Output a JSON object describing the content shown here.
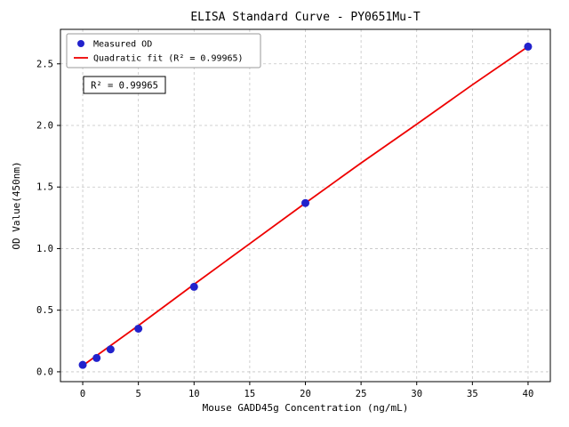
{
  "chart_data": {
    "type": "scatter",
    "title": "ELISA Standard Curve - PY0651Mu-T",
    "xlabel": "Mouse GADD45g Concentration (ng/mL)",
    "ylabel": "OD Value(450nm)",
    "xlim": [
      -2,
      42
    ],
    "ylim": [
      -0.08,
      2.78
    ],
    "xticks": [
      0,
      5,
      10,
      15,
      20,
      25,
      30,
      35,
      40
    ],
    "yticks": [
      0,
      0.5,
      1,
      1.5,
      2,
      2.5
    ],
    "xtick_labels": [
      "0",
      "5",
      "10",
      "15",
      "20",
      "25",
      "30",
      "35",
      "40"
    ],
    "ytick_labels": [
      "0.0",
      "0.5",
      "1.0",
      "1.5",
      "2.0",
      "2.5"
    ],
    "grid": true,
    "legend_position": "upper left",
    "annotation": "R² = 0.99965",
    "colors": {
      "scatter": "#2222cc",
      "fit": "#ee0000",
      "grid": "#c4c4c4",
      "axis": "#000000",
      "legend_border": "#999999"
    },
    "series": [
      {
        "name": "Measured OD",
        "type": "scatter",
        "color_key": "scatter",
        "x": [
          0,
          1.25,
          2.5,
          5,
          10,
          20,
          40
        ],
        "y": [
          0.056,
          0.112,
          0.182,
          0.35,
          0.69,
          1.37,
          2.64
        ]
      },
      {
        "name": "Quadratic fit (R² = 0.99965)",
        "type": "line",
        "color_key": "fit",
        "x": [
          0,
          5,
          10,
          15,
          20,
          25,
          30,
          35,
          40
        ],
        "y": [
          0.05,
          0.375,
          0.71,
          1.04,
          1.37,
          1.695,
          2.01,
          2.33,
          2.64
        ]
      }
    ]
  }
}
